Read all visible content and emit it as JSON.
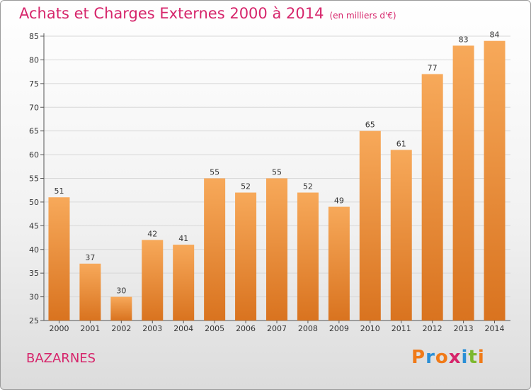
{
  "title": "Achats et Charges Externes 2000 à 2014",
  "unit_note": "(en milliers d'€)",
  "commune": "BAZARNES",
  "logo": {
    "letters": [
      "P",
      "r",
      "o",
      "x",
      "i",
      "t",
      "i"
    ],
    "colors": [
      "#f07a18",
      "#2a8fd6",
      "#f07a18",
      "#d6256b",
      "#2a8fd6",
      "#7cb82f",
      "#f07a18"
    ]
  },
  "colors": {
    "bar_top": "#f7a95a",
    "bar_bottom": "#d9731f",
    "title": "#d6256b",
    "grid": "#d8d8d8"
  },
  "chart_data": {
    "type": "bar",
    "title": "Achats et Charges Externes 2000 à 2014",
    "categories": [
      "2000",
      "2001",
      "2002",
      "2003",
      "2004",
      "2005",
      "2006",
      "2007",
      "2008",
      "2009",
      "2010",
      "2011",
      "2012",
      "2013",
      "2014"
    ],
    "values": [
      51,
      37,
      30,
      42,
      41,
      55,
      52,
      55,
      52,
      49,
      65,
      61,
      77,
      83,
      84
    ],
    "ylim": [
      25,
      85
    ],
    "yticks": [
      25,
      30,
      35,
      40,
      45,
      50,
      55,
      60,
      65,
      70,
      75,
      80,
      85
    ],
    "grid": true,
    "xlabel": "",
    "ylabel": ""
  }
}
